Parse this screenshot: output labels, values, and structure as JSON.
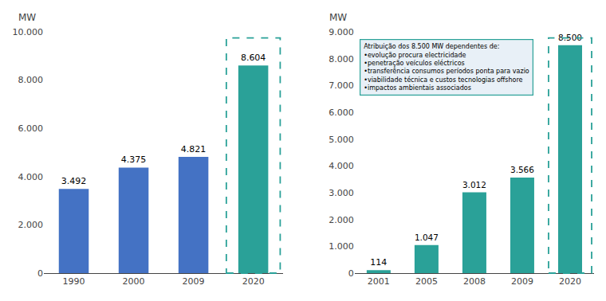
{
  "chart_data": [
    {
      "type": "bar",
      "categories": [
        "1990",
        "2000",
        "2009",
        "2020"
      ],
      "values": [
        3492,
        4375,
        4821,
        8604
      ],
      "value_labels": [
        "3.492",
        "4.375",
        "4.821",
        "8.604"
      ],
      "colors": [
        "#4472C4",
        "#4472C4",
        "#4472C4",
        "#2AA198"
      ],
      "ylabel": "MW",
      "ylim": [
        0,
        10000
      ],
      "yticks": [
        0,
        {
          "value": 2000,
          "label": "2.000"
        },
        {
          "value": 4000,
          "label": "4.000"
        },
        {
          "value": 6000,
          "label": "6.000"
        },
        {
          "value": 8000,
          "label": "8.000"
        },
        {
          "value": 10000,
          "label": "10.000"
        }
      ],
      "grid": false,
      "data_labels": true
    },
    {
      "type": "bar",
      "categories": [
        "2001",
        "2005",
        "2008",
        "2009",
        "2020"
      ],
      "values": [
        114,
        1047,
        3012,
        3566,
        8500
      ],
      "value_labels": [
        "114",
        "1.047",
        "3.012",
        "3.566",
        "8.500"
      ],
      "colors": [
        "#2AA198",
        "#2AA198",
        "#2AA198",
        "#2AA198",
        "#2AA198"
      ],
      "ylabel": "MW",
      "ylim": [
        0,
        9000
      ],
      "yticks": [
        0,
        {
          "value": 1000,
          "label": "1.000"
        },
        {
          "value": 2000,
          "label": "2.000"
        },
        {
          "value": 3000,
          "label": "3.000"
        },
        {
          "value": 4000,
          "label": "4.000"
        },
        {
          "value": 5000,
          "label": "5.000"
        },
        {
          "value": 6000,
          "label": "6.000"
        },
        {
          "value": 7000,
          "label": "7.000"
        },
        {
          "value": 8000,
          "label": "8.000"
        },
        {
          "value": 9000,
          "label": "9.000"
        }
      ],
      "grid": false,
      "data_labels": true,
      "annotations": [
        "Atribuição dos 8.500 MW dependentes de:",
        "•evolução procura electricidade",
        "•penetração veículos eléctricos",
        "•transferência consumos períodos ponta para vazio",
        "•viabilidade técnica e custos tecnologias offshore",
        "•impactos ambientais associados"
      ]
    }
  ]
}
